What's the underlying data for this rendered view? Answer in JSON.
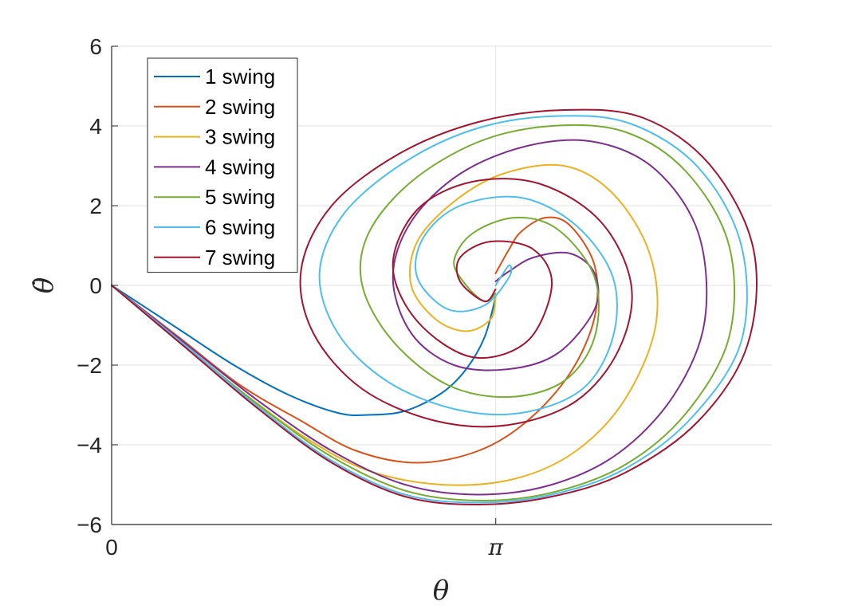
{
  "chart_data": {
    "type": "line",
    "title": "",
    "xlabel": "θ",
    "ylabel": "θ̇",
    "xlim": [
      0,
      5.4
    ],
    "ylim": [
      -6,
      6
    ],
    "x_ticks": [
      {
        "value": 0,
        "label": "0"
      },
      {
        "value": 3.14159,
        "label": "π"
      }
    ],
    "y_ticks": [
      {
        "value": -6,
        "label": "−6"
      },
      {
        "value": -4,
        "label": "−4"
      },
      {
        "value": -2,
        "label": "−2"
      },
      {
        "value": 0,
        "label": "0"
      },
      {
        "value": 2,
        "label": "2"
      },
      {
        "value": 4,
        "label": "4"
      },
      {
        "value": 6,
        "label": "6"
      }
    ],
    "grid": true,
    "legend_position": "top-left",
    "series": [
      {
        "name": "1 swing",
        "color": "#0072BD",
        "x": [
          0.0,
          0.55,
          1.0,
          1.45,
          1.85,
          2.1,
          2.4,
          2.7,
          2.9,
          3.05,
          3.14
        ],
        "y": [
          0.0,
          -1.1,
          -2.0,
          -2.75,
          -3.2,
          -3.25,
          -3.15,
          -2.7,
          -2.1,
          -1.3,
          -0.3
        ]
      },
      {
        "name": "2 swing",
        "color": "#D95319",
        "x": [
          0.0,
          0.55,
          1.05,
          1.55,
          2.0,
          2.5,
          3.0,
          3.4,
          3.75,
          3.95,
          3.95,
          3.75,
          3.55,
          3.35,
          3.25,
          3.14
        ],
        "y": [
          0.0,
          -1.3,
          -2.5,
          -3.4,
          -4.15,
          -4.45,
          -4.15,
          -3.4,
          -2.2,
          -0.8,
          0.5,
          1.5,
          1.7,
          1.35,
          0.9,
          0.3
        ]
      },
      {
        "name": "3 swing",
        "color": "#EDB120",
        "x": [
          0.0,
          0.55,
          1.1,
          1.6,
          2.1,
          2.7,
          3.3,
          3.8,
          4.2,
          4.45,
          4.4,
          4.1,
          3.7,
          3.2,
          2.8,
          2.5,
          2.45,
          2.65,
          2.9,
          3.1,
          3.14
        ],
        "y": [
          0.0,
          -1.4,
          -2.75,
          -3.85,
          -4.65,
          -5.0,
          -4.85,
          -4.15,
          -2.85,
          -1.0,
          0.8,
          2.3,
          3.0,
          2.8,
          2.1,
          1.1,
          0.0,
          -0.85,
          -1.15,
          -0.85,
          -0.3
        ]
      },
      {
        "name": "4 swing",
        "color": "#7E2F8E",
        "x": [
          0.0,
          0.6,
          1.2,
          1.8,
          2.4,
          3.0,
          3.6,
          4.15,
          4.6,
          4.85,
          4.8,
          4.45,
          3.95,
          3.4,
          2.85,
          2.45,
          2.3,
          2.45,
          2.8,
          3.25,
          3.65,
          3.95,
          3.95,
          3.75,
          3.45,
          3.25,
          3.14
        ],
        "y": [
          0.0,
          -1.45,
          -2.9,
          -4.15,
          -5.0,
          -5.25,
          -5.0,
          -4.2,
          -2.75,
          -0.9,
          1.3,
          2.9,
          3.6,
          3.5,
          2.8,
          1.6,
          0.2,
          -1.2,
          -2.0,
          -2.1,
          -1.7,
          -0.6,
          0.3,
          0.8,
          0.7,
          0.35,
          0.1
        ]
      },
      {
        "name": "5 swing",
        "color": "#77AC30",
        "x": [
          0.0,
          0.6,
          1.2,
          1.8,
          2.4,
          3.0,
          3.6,
          4.2,
          4.7,
          5.05,
          5.05,
          4.7,
          4.2,
          3.6,
          3.0,
          2.45,
          2.1,
          2.05,
          2.3,
          2.75,
          3.25,
          3.7,
          3.95,
          3.95,
          3.65,
          3.3,
          2.95,
          2.8,
          2.9,
          3.05,
          3.14
        ],
        "y": [
          0.0,
          -1.5,
          -3.0,
          -4.3,
          -5.15,
          -5.4,
          -5.2,
          -4.5,
          -3.2,
          -1.3,
          1.0,
          2.85,
          3.85,
          4.0,
          3.6,
          2.6,
          1.3,
          0.0,
          -1.4,
          -2.5,
          -2.8,
          -2.4,
          -1.3,
          0.2,
          1.4,
          1.7,
          1.3,
          0.6,
          0.0,
          -0.4,
          -0.2
        ]
      },
      {
        "name": "6 swing",
        "color": "#4DBEEE",
        "x": [
          0.0,
          0.6,
          1.2,
          1.8,
          2.4,
          3.0,
          3.6,
          4.2,
          4.75,
          5.15,
          5.15,
          4.8,
          4.25,
          3.65,
          3.0,
          2.4,
          1.9,
          1.7,
          1.85,
          2.25,
          2.8,
          3.35,
          3.85,
          4.1,
          4.1,
          3.8,
          3.35,
          2.85,
          2.55,
          2.5,
          2.75,
          3.05,
          3.25,
          3.25,
          3.14
        ],
        "y": [
          0.0,
          -1.5,
          -3.05,
          -4.4,
          -5.25,
          -5.45,
          -5.25,
          -4.6,
          -3.3,
          -1.4,
          1.0,
          2.95,
          4.05,
          4.25,
          3.95,
          3.1,
          1.8,
          0.3,
          -1.2,
          -2.4,
          -3.1,
          -3.2,
          -2.6,
          -1.3,
          0.2,
          1.5,
          2.2,
          2.0,
          1.2,
          0.2,
          -0.6,
          -0.5,
          0.2,
          0.5,
          0.0
        ]
      },
      {
        "name": "7 swing",
        "color": "#A2142F",
        "x": [
          0.0,
          0.6,
          1.2,
          1.8,
          2.4,
          3.0,
          3.6,
          4.2,
          4.8,
          5.2,
          5.25,
          4.9,
          4.35,
          3.7,
          3.0,
          2.35,
          1.8,
          1.55,
          1.65,
          2.05,
          2.65,
          3.25,
          3.8,
          4.15,
          4.25,
          4.0,
          3.5,
          2.95,
          2.5,
          2.3,
          2.5,
          2.95,
          3.4,
          3.6,
          3.45,
          3.1,
          2.85,
          2.85,
          3.05,
          3.14
        ],
        "y": [
          0.0,
          -1.55,
          -3.1,
          -4.45,
          -5.3,
          -5.5,
          -5.3,
          -4.7,
          -3.4,
          -1.5,
          0.9,
          3.0,
          4.2,
          4.4,
          4.1,
          3.3,
          2.0,
          0.4,
          -1.2,
          -2.6,
          -3.4,
          -3.5,
          -2.9,
          -1.6,
          0.0,
          1.6,
          2.55,
          2.6,
          1.9,
          0.5,
          -0.9,
          -1.8,
          -1.4,
          0.0,
          0.9,
          1.1,
          0.7,
          0.1,
          -0.4,
          -0.1
        ]
      }
    ]
  }
}
